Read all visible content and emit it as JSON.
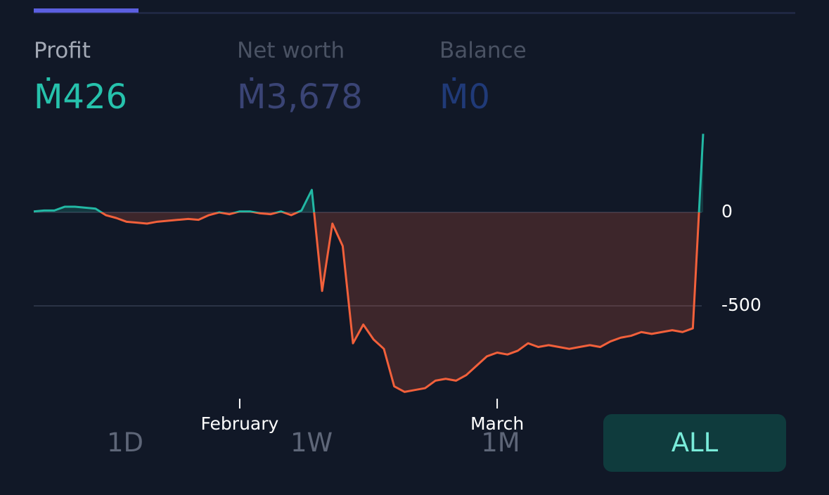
{
  "stats": [
    {
      "label": "Profit",
      "value": "Ṁ426"
    },
    {
      "label": "Net worth",
      "value": "Ṁ3,678"
    },
    {
      "label": "Balance",
      "value": "Ṁ0"
    }
  ],
  "chart_data": {
    "type": "line",
    "categories": [
      null,
      null,
      null,
      null,
      null,
      null,
      null,
      null,
      null,
      null,
      null,
      null,
      null,
      null,
      null,
      null,
      null,
      null,
      null,
      null,
      "February",
      null,
      null,
      null,
      null,
      null,
      null,
      null,
      null,
      null,
      null,
      null,
      null,
      null,
      null,
      null,
      null,
      null,
      null,
      null,
      null,
      null,
      null,
      null,
      null,
      "March",
      null,
      null,
      null,
      null,
      null,
      null,
      null,
      null,
      null,
      null,
      null,
      null,
      null,
      null,
      null,
      null,
      null,
      null,
      null,
      null
    ],
    "values": [
      5,
      10,
      10,
      30,
      30,
      25,
      20,
      -15,
      -30,
      -50,
      -55,
      -60,
      -50,
      -45,
      -40,
      -35,
      -40,
      -15,
      0,
      -10,
      5,
      5,
      -5,
      -10,
      5,
      -15,
      10,
      120,
      -420,
      -60,
      -180,
      -700,
      -600,
      -680,
      -730,
      -930,
      -960,
      -950,
      -940,
      -900,
      -890,
      -900,
      -870,
      -820,
      -770,
      -750,
      -760,
      -740,
      -700,
      -720,
      -710,
      -720,
      -730,
      -720,
      -710,
      -720,
      -690,
      -670,
      -660,
      -640,
      -650,
      -640,
      -630,
      -640,
      -620,
      420
    ],
    "color_positive": "#22b8a4",
    "color_negative": "#f2603b",
    "ylim": [
      -1000,
      440
    ],
    "yticks": [
      0,
      -500
    ],
    "grid": true
  },
  "ranges": [
    "1D",
    "1W",
    "1M",
    "ALL"
  ]
}
